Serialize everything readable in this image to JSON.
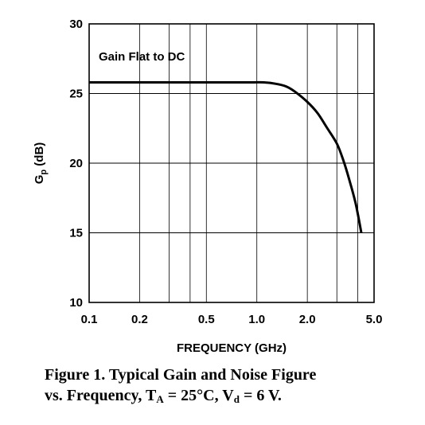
{
  "chart_data": {
    "type": "line",
    "xscale": "log",
    "xlim": [
      0.1,
      5.0
    ],
    "ylim": [
      10,
      30
    ],
    "xlabel": "FREQUENCY (GHz)",
    "ylabel_main": "G",
    "ylabel_sub": "p",
    "ylabel_unit": " (dB)",
    "xticks": [
      0.1,
      0.2,
      0.5,
      1.0,
      2.0,
      5.0
    ],
    "xtick_labels": [
      "0.1",
      "0.2",
      "0.5",
      "1.0",
      "2.0",
      "5.0"
    ],
    "xgrid": [
      0.2,
      0.3,
      0.4,
      0.5,
      1.0,
      2.0,
      3.0,
      4.0
    ],
    "yticks": [
      10,
      15,
      20,
      25,
      30
    ],
    "ytick_labels": [
      "10",
      "15",
      "20",
      "25",
      "30"
    ],
    "grid": true,
    "annotation": "Gain Flat to DC",
    "series": [
      {
        "x": [
          0.1,
          0.2,
          0.5,
          0.9,
          1.1,
          1.3,
          1.5,
          1.7,
          2.0,
          2.3,
          2.6,
          3.0,
          3.3,
          3.6,
          3.9,
          4.2
        ],
        "y": [
          25.8,
          25.8,
          25.8,
          25.8,
          25.8,
          25.7,
          25.5,
          25.1,
          24.4,
          23.6,
          22.6,
          21.4,
          20.1,
          18.6,
          17.0,
          15.0
        ]
      }
    ]
  },
  "caption": {
    "line1": "Figure 1.  Typical Gain and Noise Figure",
    "line2_pre": "vs. Frequency, T",
    "line2_sub1": "A",
    "line2_mid": " = 25°C, V",
    "line2_sub2": "d",
    "line2_post": " = 6 V."
  }
}
